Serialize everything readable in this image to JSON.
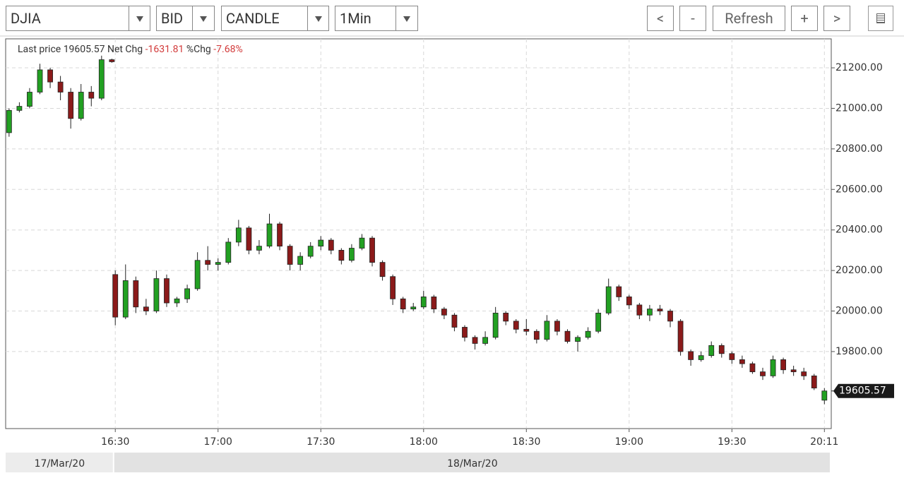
{
  "toolbar": {
    "selects": [
      "DJIA",
      "BID",
      "CANDLE",
      "1Min"
    ],
    "buttons": [
      "<",
      "-",
      "Refresh",
      "+",
      ">"
    ]
  },
  "chart_data": {
    "type": "candlestick",
    "header": {
      "last_label": "Last price",
      "net_label": "Net Chg",
      "net_change": -1631.81,
      "pct_label": "%Chg",
      "pct_change": "-7.68%"
    },
    "last_price": 19605.57,
    "up_color": "#22a022",
    "down_color": "#8b1a1a",
    "xlim": [
      -1,
      240
    ],
    "ylim": [
      19420,
      21343
    ],
    "xticks": [
      {
        "value": 31,
        "label": "16:30"
      },
      {
        "value": 61,
        "label": "17:00"
      },
      {
        "value": 91,
        "label": "17:30"
      },
      {
        "value": 121,
        "label": "18:00"
      },
      {
        "value": 151,
        "label": "18:30"
      },
      {
        "value": 181,
        "label": "19:00"
      },
      {
        "value": 211,
        "label": "19:30"
      },
      {
        "value": 238,
        "label": "20:11"
      }
    ],
    "yticks": [
      {
        "value": 19800,
        "label": "19800.00"
      },
      {
        "value": 20000,
        "label": "20000.00"
      },
      {
        "value": 20200,
        "label": "20200.00"
      },
      {
        "value": 20400,
        "label": "20400.00"
      },
      {
        "value": 20600,
        "label": "20600.00"
      },
      {
        "value": 20800,
        "label": "20800.00"
      },
      {
        "value": 21000,
        "label": "21000.00"
      },
      {
        "value": 21200,
        "label": "21200.00"
      }
    ],
    "grid": true,
    "date_labels": [
      "17/Mar/20",
      "18/Mar/20"
    ],
    "x": [
      0,
      3,
      6,
      9,
      12,
      15,
      18,
      21,
      24,
      27,
      30,
      31,
      34,
      37,
      40,
      43,
      46,
      49,
      52,
      55,
      58,
      61,
      64,
      67,
      70,
      73,
      76,
      79,
      82,
      85,
      88,
      91,
      94,
      97,
      100,
      103,
      106,
      109,
      112,
      115,
      118,
      121,
      124,
      127,
      130,
      133,
      136,
      139,
      142,
      145,
      148,
      151,
      154,
      157,
      160,
      163,
      166,
      169,
      172,
      175,
      178,
      181,
      184,
      187,
      190,
      193,
      196,
      199,
      202,
      205,
      208,
      211,
      214,
      217,
      220,
      223,
      226,
      229,
      232,
      235,
      238
    ],
    "open": [
      20880,
      20990,
      21010,
      21080,
      21190,
      21130,
      21080,
      20950,
      21080,
      21050,
      21240,
      20180,
      19970,
      20150,
      20020,
      20000,
      20160,
      20040,
      20060,
      20110,
      20250,
      20230,
      20240,
      20340,
      20410,
      20300,
      20320,
      20430,
      20320,
      20230,
      20270,
      20320,
      20350,
      20300,
      20250,
      20310,
      20360,
      20240,
      20170,
      20060,
      20010,
      20020,
      20070,
      20010,
      19980,
      19920,
      19870,
      19840,
      19870,
      19990,
      19950,
      19910,
      19900,
      19860,
      19950,
      19900,
      19850,
      19870,
      19900,
      19990,
      20120,
      20070,
      20030,
      19980,
      20010,
      20000,
      19950,
      19800,
      19760,
      19780,
      19830,
      19790,
      19760,
      19740,
      19700,
      19680,
      19760,
      19710,
      19700,
      19680,
      19560
    ],
    "high": [
      21000,
      21030,
      21100,
      21220,
      21200,
      21160,
      21100,
      21120,
      21110,
      21260,
      21245,
      20200,
      20230,
      20170,
      20060,
      20200,
      20180,
      20070,
      20130,
      20290,
      20320,
      20260,
      20360,
      20450,
      20420,
      20350,
      20480,
      20440,
      20330,
      20290,
      20340,
      20370,
      20360,
      20310,
      20330,
      20380,
      20370,
      20250,
      20180,
      20070,
      20040,
      20100,
      20080,
      20020,
      19990,
      19930,
      19880,
      19900,
      20020,
      20000,
      19960,
      19960,
      19910,
      19980,
      19960,
      19910,
      19880,
      19920,
      20010,
      20160,
      20130,
      20080,
      20040,
      20030,
      20030,
      20010,
      19960,
      19810,
      19800,
      19850,
      19840,
      19800,
      19780,
      19750,
      19720,
      19780,
      19770,
      19730,
      19720,
      19690,
      19620
    ],
    "low": [
      20860,
      20980,
      21000,
      21070,
      21100,
      21040,
      20900,
      20940,
      21010,
      21040,
      21225,
      19930,
      19960,
      19990,
      19980,
      19990,
      20020,
      20020,
      20040,
      20100,
      20200,
      20200,
      20230,
      20320,
      20280,
      20280,
      20310,
      20300,
      20200,
      20200,
      20260,
      20300,
      20280,
      20230,
      20240,
      20300,
      20220,
      20150,
      20030,
      19990,
      20000,
      20010,
      19990,
      19960,
      19900,
      19850,
      19810,
      19830,
      19860,
      19930,
      19890,
      19880,
      19840,
      19850,
      19880,
      19840,
      19800,
      19860,
      19890,
      19980,
      20050,
      20010,
      19960,
      19950,
      19980,
      19920,
      19780,
      19730,
      19750,
      19770,
      19770,
      19740,
      19720,
      19690,
      19660,
      19670,
      19690,
      19680,
      19660,
      19610,
      19540
    ],
    "close": [
      20990,
      21010,
      21080,
      21190,
      21130,
      21080,
      20950,
      21080,
      21050,
      21240,
      21230,
      19970,
      20150,
      20020,
      20000,
      20160,
      20040,
      20060,
      20110,
      20250,
      20230,
      20240,
      20340,
      20410,
      20300,
      20320,
      20430,
      20320,
      20230,
      20270,
      20320,
      20350,
      20300,
      20250,
      20310,
      20360,
      20240,
      20170,
      20060,
      20010,
      20020,
      20070,
      20010,
      19980,
      19920,
      19870,
      19840,
      19870,
      19990,
      19950,
      19910,
      19900,
      19860,
      19950,
      19900,
      19850,
      19870,
      19900,
      19990,
      20120,
      20070,
      20030,
      19980,
      20010,
      20000,
      19950,
      19800,
      19760,
      19780,
      19830,
      19790,
      19760,
      19740,
      19700,
      19680,
      19760,
      19710,
      19700,
      19680,
      19620,
      19605.57
    ]
  }
}
